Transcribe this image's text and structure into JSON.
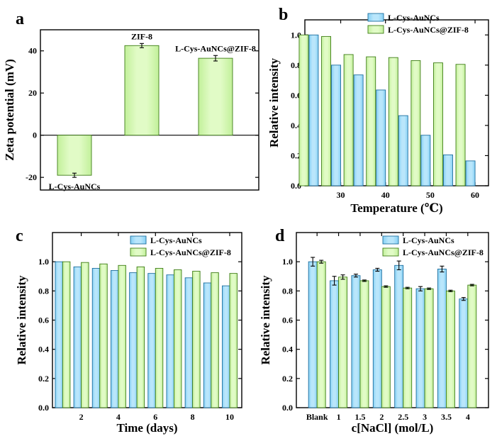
{
  "colors": {
    "blue_fill": "#85d0f5",
    "blue_edge": "#1f6f9e",
    "green_fill": "#c2f09a",
    "green_edge": "#3f7d17",
    "axis": "#000000"
  },
  "chart_data": [
    {
      "panel": "a",
      "type": "bar",
      "categories": [
        "L-Cys-AuNCs",
        "ZIF-8",
        "L-Cys-AuNCs@ZIF-8"
      ],
      "values": [
        -19,
        42.5,
        36.5
      ],
      "errors": [
        1.0,
        1.0,
        1.3
      ],
      "bar_labels": [
        "L-Cys-AuNCs",
        "ZIF-8",
        "L-Cys-AuNCs@ZIF-8"
      ],
      "xlabel": "",
      "ylabel": "Zeta potential (mV)",
      "ylim": [
        -26,
        50
      ],
      "yticks": [
        -20,
        0,
        20,
        40
      ],
      "ytick_labels": [
        "-20",
        "0",
        "20",
        "40"
      ]
    },
    {
      "panel": "b",
      "type": "bar",
      "x": [
        25,
        30,
        35,
        40,
        45,
        50,
        55,
        60
      ],
      "series": [
        {
          "name": "L-Cys-AuNCs",
          "values": [
            1.0,
            0.8,
            0.735,
            0.635,
            0.465,
            0.335,
            0.205,
            0.165
          ]
        },
        {
          "name": "L-Cys-AuNCs@ZIF-8",
          "values": [
            1.0,
            0.99,
            0.87,
            0.855,
            0.85,
            0.83,
            0.815,
            0.805
          ]
        }
      ],
      "xlabel": "Temperature (℃)",
      "ylabel": "Relative intensity",
      "xlim": [
        22,
        63
      ],
      "xticks": [
        30,
        40,
        50,
        60
      ],
      "xtick_labels": [
        "30",
        "40",
        "50",
        "60"
      ],
      "ylim": [
        0,
        1.1
      ],
      "yticks": [
        0,
        0.2,
        0.4,
        0.6,
        0.8,
        1.0
      ],
      "ytick_labels": [
        "0.0",
        "0.2",
        "0.4",
        "0.6",
        "0.8",
        "1.0"
      ],
      "legend_position": "top-right"
    },
    {
      "panel": "c",
      "type": "bar",
      "x": [
        1,
        2,
        3,
        4,
        5,
        6,
        7,
        8,
        9,
        10
      ],
      "series": [
        {
          "name": "L-Cys-AuNCs",
          "values": [
            1.0,
            0.965,
            0.955,
            0.94,
            0.925,
            0.92,
            0.91,
            0.89,
            0.855,
            0.835
          ]
        },
        {
          "name": "L-Cys-AuNCs@ZIF-8",
          "values": [
            1.0,
            0.995,
            0.985,
            0.975,
            0.965,
            0.955,
            0.945,
            0.935,
            0.925,
            0.92
          ]
        }
      ],
      "xlabel": "Time (days)",
      "ylabel": "Relative intensity",
      "xlim": [
        0.45,
        10.65
      ],
      "xticks": [
        2,
        4,
        6,
        8,
        10
      ],
      "xtick_labels": [
        "2",
        "4",
        "6",
        "8",
        "10"
      ],
      "ylim": [
        0,
        1.2
      ],
      "yticks": [
        0,
        0.2,
        0.4,
        0.6,
        0.8,
        1.0
      ],
      "ytick_labels": [
        "0.0",
        "0.2",
        "0.4",
        "0.6",
        "0.8",
        "1.0"
      ],
      "legend_position": "top-right"
    },
    {
      "panel": "d",
      "type": "bar",
      "categories": [
        "Blank",
        "1",
        "1.5",
        "2",
        "2.5",
        "3",
        "3.5",
        "4"
      ],
      "series": [
        {
          "name": "L-Cys-AuNCs",
          "values": [
            1.0,
            0.87,
            0.905,
            0.945,
            0.975,
            0.815,
            0.95,
            0.745
          ],
          "errors": [
            0.03,
            0.03,
            0.01,
            0.01,
            0.03,
            0.015,
            0.02,
            0.01
          ]
        },
        {
          "name": "L-Cys-AuNCs@ZIF-8",
          "values": [
            1.0,
            0.895,
            0.87,
            0.83,
            0.82,
            0.815,
            0.8,
            0.84
          ],
          "errors": [
            0.01,
            0.015,
            0.005,
            0.005,
            0.005,
            0.005,
            0.005,
            0.005
          ]
        }
      ],
      "xlabel": "c[NaCl] (mol/L)",
      "ylabel": "Relative intensity",
      "ylim": [
        0,
        1.2
      ],
      "yticks": [
        0,
        0.2,
        0.4,
        0.6,
        0.8,
        1.0
      ],
      "ytick_labels": [
        "0.0",
        "0.2",
        "0.4",
        "0.6",
        "0.8",
        "1.0"
      ],
      "legend_position": "top-right"
    }
  ]
}
